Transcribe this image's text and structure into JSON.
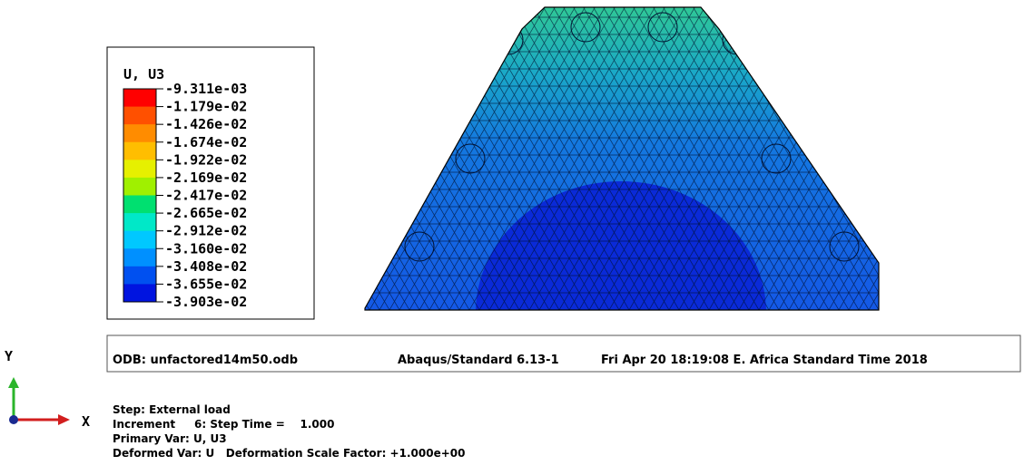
{
  "legend": {
    "title": "U, U3",
    "labels": [
      "-9.311e-03",
      "-1.179e-02",
      "-1.426e-02",
      "-1.674e-02",
      "-1.922e-02",
      "-2.169e-02",
      "-2.417e-02",
      "-2.665e-02",
      "-2.912e-02",
      "-3.160e-02",
      "-3.408e-02",
      "-3.655e-02",
      "-3.903e-02"
    ]
  },
  "info_bar": {
    "odb": "ODB: unfactored14m50.odb",
    "solver": "Abaqus/Standard 6.13-1",
    "date": "Fri Apr 20 18:19:08 E. Africa Standard Time 2018"
  },
  "step_info": [
    "Step: External load",
    "Increment     6: Step Time =    1.000",
    "Primary Var: U, U3",
    "Deformed Var: U   Deformation Scale Factor: +1.000e+00"
  ],
  "triad": {
    "y_label": "Y",
    "x_label": "X"
  }
}
